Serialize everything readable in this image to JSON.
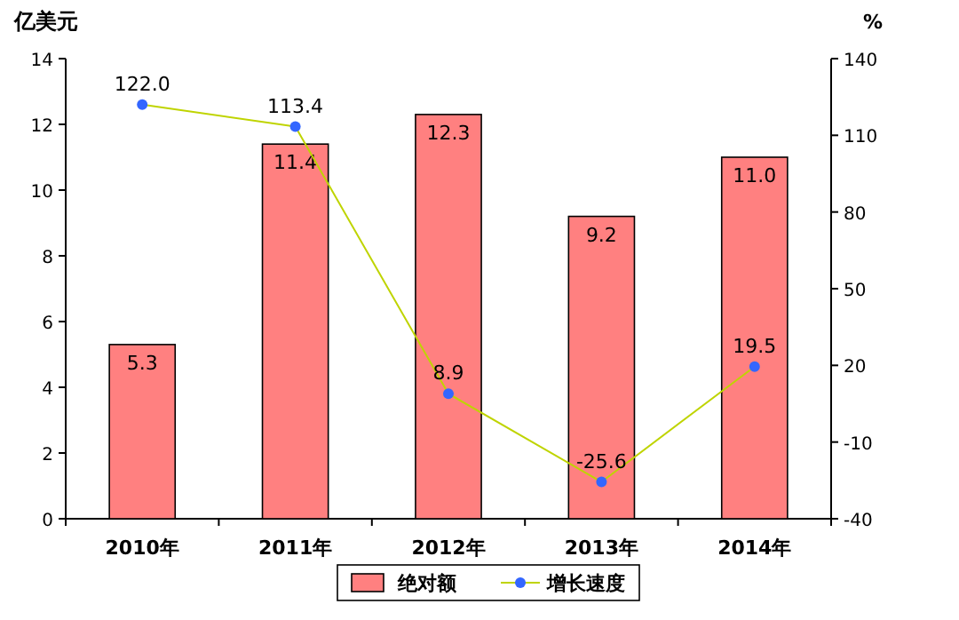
{
  "chart_data": {
    "type": "bar",
    "ylabel": "亿美元",
    "y2label": "%",
    "categories": [
      "2010年",
      "2011年",
      "2012年",
      "2013年",
      "2014年"
    ],
    "series": [
      {
        "name": "绝对额",
        "color": "#ff8080",
        "values": [
          5.3,
          11.4,
          12.3,
          9.2,
          11.0
        ],
        "value_labels": [
          "5.3",
          "11.4",
          "12.3",
          "9.2",
          "11.0"
        ]
      },
      {
        "name": "增长速度",
        "type": "line",
        "axis": "y2",
        "color": "#bfd400",
        "marker": "circle",
        "values": [
          122.0,
          113.4,
          8.9,
          -25.6,
          19.5
        ],
        "value_labels": [
          "122.0",
          "113.4",
          "8.9",
          "-25.6",
          "19.5"
        ]
      }
    ],
    "ylim": [
      0,
      14
    ],
    "yticks": [
      0,
      2,
      4,
      6,
      8,
      10,
      12,
      14
    ],
    "y2lim": [
      -40,
      140
    ],
    "y2ticks": [
      -40,
      -10,
      20,
      50,
      80,
      110,
      140
    ],
    "legend": "bottom",
    "grid": false
  }
}
